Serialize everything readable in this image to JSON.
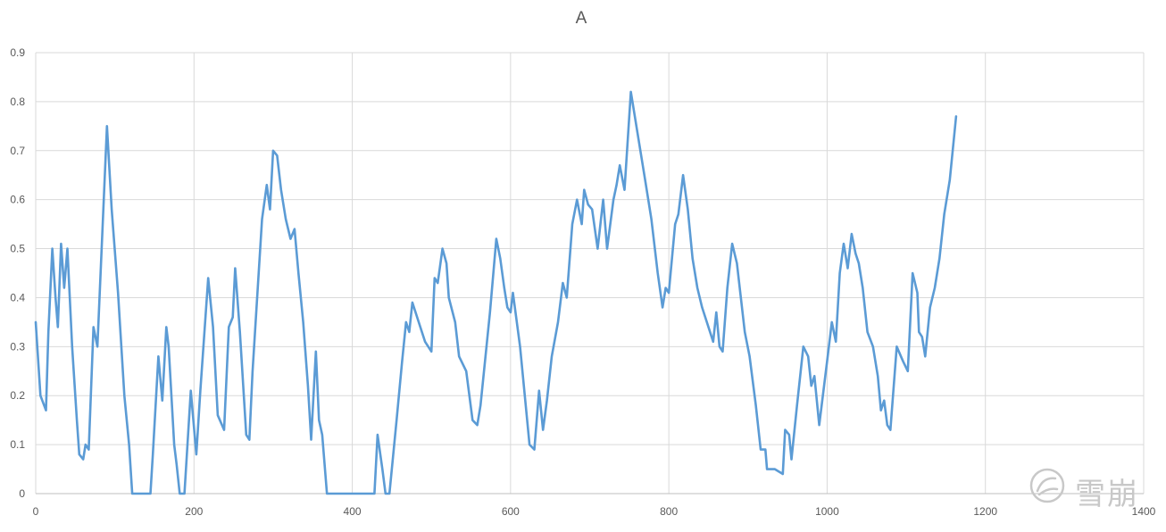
{
  "chart_data": {
    "type": "line",
    "title": "A",
    "xlabel": "",
    "ylabel": "",
    "xlim": [
      0,
      1400
    ],
    "ylim": [
      0,
      0.9
    ],
    "x_ticks": [
      0,
      200,
      400,
      600,
      800,
      1000,
      1200,
      1400
    ],
    "y_ticks": [
      0,
      0.1,
      0.2,
      0.3,
      0.4,
      0.5,
      0.6,
      0.7,
      0.8,
      0.9
    ],
    "grid": true,
    "legend": "none",
    "series": [
      {
        "color": "#5b9bd5",
        "points": [
          [
            0,
            0.35
          ],
          [
            6,
            0.2
          ],
          [
            13,
            0.17
          ],
          [
            16,
            0.33
          ],
          [
            21,
            0.5
          ],
          [
            25,
            0.4
          ],
          [
            28,
            0.34
          ],
          [
            32,
            0.51
          ],
          [
            36,
            0.42
          ],
          [
            40,
            0.5
          ],
          [
            46,
            0.3
          ],
          [
            52,
            0.15
          ],
          [
            55,
            0.08
          ],
          [
            60,
            0.07
          ],
          [
            63,
            0.1
          ],
          [
            67,
            0.09
          ],
          [
            73,
            0.34
          ],
          [
            78,
            0.3
          ],
          [
            90,
            0.75
          ],
          [
            96,
            0.58
          ],
          [
            104,
            0.41
          ],
          [
            112,
            0.2
          ],
          [
            118,
            0.1
          ],
          [
            122,
            0.0
          ],
          [
            145,
            0.0
          ],
          [
            148,
            0.08
          ],
          [
            155,
            0.28
          ],
          [
            160,
            0.19
          ],
          [
            165,
            0.34
          ],
          [
            168,
            0.3
          ],
          [
            175,
            0.1
          ],
          [
            178,
            0.06
          ],
          [
            182,
            0.0
          ],
          [
            188,
            0.0
          ],
          [
            196,
            0.21
          ],
          [
            203,
            0.08
          ],
          [
            208,
            0.21
          ],
          [
            218,
            0.44
          ],
          [
            224,
            0.34
          ],
          [
            230,
            0.16
          ],
          [
            238,
            0.13
          ],
          [
            244,
            0.34
          ],
          [
            249,
            0.36
          ],
          [
            252,
            0.46
          ],
          [
            258,
            0.33
          ],
          [
            266,
            0.12
          ],
          [
            270,
            0.11
          ],
          [
            274,
            0.25
          ],
          [
            286,
            0.56
          ],
          [
            292,
            0.63
          ],
          [
            296,
            0.58
          ],
          [
            300,
            0.7
          ],
          [
            305,
            0.69
          ],
          [
            310,
            0.62
          ],
          [
            316,
            0.56
          ],
          [
            322,
            0.52
          ],
          [
            327,
            0.54
          ],
          [
            332,
            0.45
          ],
          [
            338,
            0.35
          ],
          [
            344,
            0.22
          ],
          [
            348,
            0.11
          ],
          [
            354,
            0.29
          ],
          [
            358,
            0.15
          ],
          [
            362,
            0.12
          ],
          [
            368,
            0.0
          ],
          [
            428,
            0.0
          ],
          [
            432,
            0.12
          ],
          [
            438,
            0.05
          ],
          [
            442,
            0.0
          ],
          [
            447,
            0.0
          ],
          [
            456,
            0.15
          ],
          [
            463,
            0.27
          ],
          [
            468,
            0.35
          ],
          [
            472,
            0.33
          ],
          [
            476,
            0.39
          ],
          [
            484,
            0.35
          ],
          [
            492,
            0.31
          ],
          [
            500,
            0.29
          ],
          [
            504,
            0.44
          ],
          [
            508,
            0.43
          ],
          [
            514,
            0.5
          ],
          [
            519,
            0.47
          ],
          [
            522,
            0.4
          ],
          [
            530,
            0.35
          ],
          [
            535,
            0.28
          ],
          [
            544,
            0.25
          ],
          [
            552,
            0.15
          ],
          [
            558,
            0.14
          ],
          [
            562,
            0.18
          ],
          [
            574,
            0.37
          ],
          [
            582,
            0.52
          ],
          [
            587,
            0.48
          ],
          [
            592,
            0.42
          ],
          [
            596,
            0.38
          ],
          [
            600,
            0.37
          ],
          [
            603,
            0.41
          ],
          [
            612,
            0.3
          ],
          [
            624,
            0.1
          ],
          [
            630,
            0.09
          ],
          [
            636,
            0.21
          ],
          [
            641,
            0.13
          ],
          [
            646,
            0.19
          ],
          [
            652,
            0.28
          ],
          [
            660,
            0.35
          ],
          [
            666,
            0.43
          ],
          [
            671,
            0.4
          ],
          [
            678,
            0.55
          ],
          [
            684,
            0.6
          ],
          [
            690,
            0.55
          ],
          [
            693,
            0.62
          ],
          [
            698,
            0.59
          ],
          [
            703,
            0.58
          ],
          [
            710,
            0.5
          ],
          [
            717,
            0.6
          ],
          [
            722,
            0.5
          ],
          [
            730,
            0.6
          ],
          [
            734,
            0.63
          ],
          [
            738,
            0.67
          ],
          [
            744,
            0.62
          ],
          [
            752,
            0.82
          ],
          [
            760,
            0.74
          ],
          [
            770,
            0.64
          ],
          [
            778,
            0.56
          ],
          [
            786,
            0.45
          ],
          [
            792,
            0.38
          ],
          [
            796,
            0.42
          ],
          [
            800,
            0.41
          ],
          [
            808,
            0.55
          ],
          [
            812,
            0.57
          ],
          [
            818,
            0.65
          ],
          [
            824,
            0.58
          ],
          [
            830,
            0.48
          ],
          [
            836,
            0.42
          ],
          [
            842,
            0.38
          ],
          [
            850,
            0.34
          ],
          [
            856,
            0.31
          ],
          [
            860,
            0.37
          ],
          [
            864,
            0.3
          ],
          [
            868,
            0.29
          ],
          [
            874,
            0.42
          ],
          [
            880,
            0.51
          ],
          [
            886,
            0.47
          ],
          [
            896,
            0.33
          ],
          [
            902,
            0.28
          ],
          [
            910,
            0.18
          ],
          [
            916,
            0.09
          ],
          [
            922,
            0.09
          ],
          [
            924,
            0.05
          ],
          [
            934,
            0.05
          ],
          [
            944,
            0.04
          ],
          [
            947,
            0.13
          ],
          [
            952,
            0.12
          ],
          [
            955,
            0.07
          ],
          [
            962,
            0.18
          ],
          [
            970,
            0.3
          ],
          [
            976,
            0.28
          ],
          [
            980,
            0.22
          ],
          [
            984,
            0.24
          ],
          [
            990,
            0.14
          ],
          [
            1000,
            0.27
          ],
          [
            1006,
            0.35
          ],
          [
            1011,
            0.31
          ],
          [
            1016,
            0.45
          ],
          [
            1021,
            0.51
          ],
          [
            1026,
            0.46
          ],
          [
            1031,
            0.53
          ],
          [
            1036,
            0.49
          ],
          [
            1040,
            0.47
          ],
          [
            1045,
            0.42
          ],
          [
            1051,
            0.33
          ],
          [
            1058,
            0.3
          ],
          [
            1064,
            0.24
          ],
          [
            1068,
            0.17
          ],
          [
            1072,
            0.19
          ],
          [
            1076,
            0.14
          ],
          [
            1080,
            0.13
          ],
          [
            1088,
            0.3
          ],
          [
            1096,
            0.27
          ],
          [
            1102,
            0.25
          ],
          [
            1108,
            0.45
          ],
          [
            1114,
            0.41
          ],
          [
            1116,
            0.33
          ],
          [
            1120,
            0.32
          ],
          [
            1124,
            0.28
          ],
          [
            1130,
            0.38
          ],
          [
            1136,
            0.42
          ],
          [
            1142,
            0.48
          ],
          [
            1148,
            0.57
          ],
          [
            1155,
            0.64
          ],
          [
            1163,
            0.77
          ]
        ]
      }
    ]
  },
  "watermark": {
    "text": "雪崩"
  }
}
